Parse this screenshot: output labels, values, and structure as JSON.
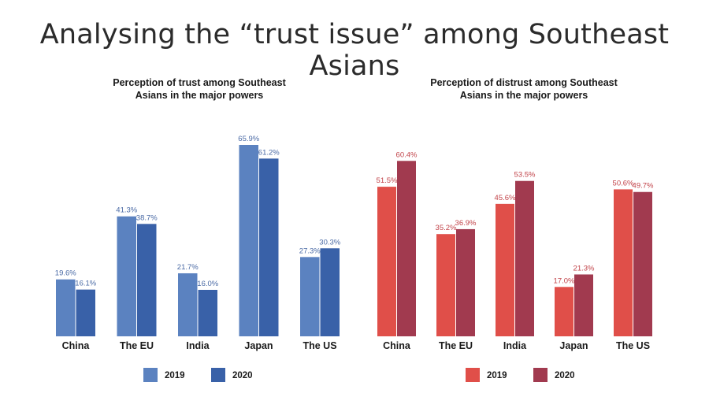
{
  "page_title": "Analysing the “trust issue” among Southeast Asians",
  "chart_data": [
    {
      "type": "bar",
      "title_lines": [
        "Perception of trust among Southeast",
        "Asians in the major powers"
      ],
      "categories": [
        "China",
        "The EU",
        "India",
        "Japan",
        "The US"
      ],
      "series": [
        {
          "name": "2019",
          "color": "#5b82c0",
          "values": [
            19.6,
            41.3,
            21.7,
            65.9,
            27.3
          ],
          "labels": [
            "19.6%",
            "41.3%",
            "21.7%",
            "65.9%",
            "27.3%"
          ]
        },
        {
          "name": "2020",
          "color": "#3961a8",
          "values": [
            16.1,
            38.7,
            16.0,
            61.2,
            30.3
          ],
          "labels": [
            "16.1%",
            "38.7%",
            "16.0%",
            "61.2%",
            "30.3%"
          ]
        }
      ],
      "label_color": "#4a6aa5",
      "ylim": [
        0,
        70
      ],
      "xlabel": "",
      "ylabel": "",
      "grid": false
    },
    {
      "type": "bar",
      "title_lines": [
        "Perception of distrust among Southeast",
        "Asians in the major powers"
      ],
      "categories": [
        "China",
        "The EU",
        "India",
        "Japan",
        "The US"
      ],
      "series": [
        {
          "name": "2019",
          "color": "#e04f49",
          "values": [
            51.5,
            35.2,
            45.6,
            17.0,
            50.6
          ],
          "labels": [
            "51.5%",
            "35.2%",
            "45.6%",
            "17.0%",
            "50.6%"
          ]
        },
        {
          "name": "2020",
          "color": "#a13a4f",
          "values": [
            60.4,
            36.9,
            53.5,
            21.3,
            49.7
          ],
          "labels": [
            "60.4%",
            "36.9%",
            "53.5%",
            "21.3%",
            "49.7%"
          ]
        }
      ],
      "label_color": "#c2444a",
      "ylim": [
        0,
        70
      ],
      "xlabel": "",
      "ylabel": "",
      "grid": false
    }
  ]
}
